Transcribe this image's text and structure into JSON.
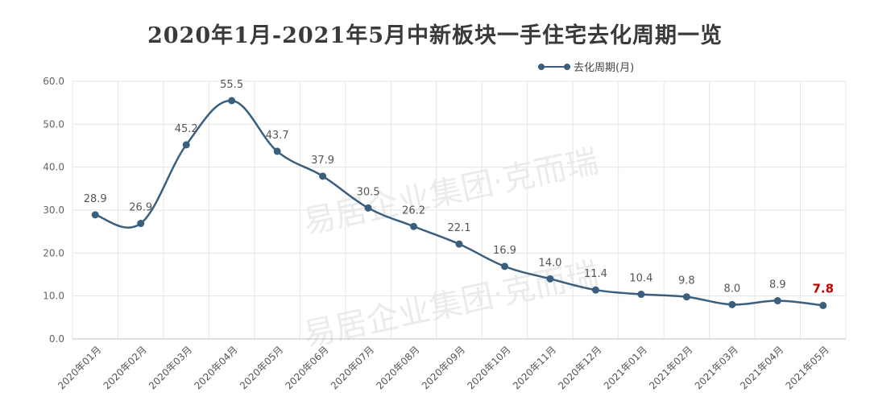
{
  "title": "2020年1月-2021年5月中新板块一手住宅去化周期一览",
  "watermark": "易居企业集团·克而瑞",
  "colors": {
    "line": "#3a5f7e",
    "highlight": "#c00000",
    "grid": "#e6e6e6"
  },
  "chart_data": {
    "type": "line",
    "title": "2020年1月-2021年5月中新板块一手住宅去化周期一览",
    "categories": [
      "2020年01月",
      "2020年02月",
      "2020年03月",
      "2020年04月",
      "2020年05月",
      "2020年06月",
      "2020年07月",
      "2020年08月",
      "2020年09月",
      "2020年10月",
      "2020年11月",
      "2020年12月",
      "2021年01月",
      "2021年02月",
      "2021年03月",
      "2021年04月",
      "2021年05月"
    ],
    "series": [
      {
        "name": "去化周期(月)",
        "values": [
          28.9,
          26.9,
          45.2,
          55.5,
          43.7,
          37.9,
          30.5,
          26.2,
          22.1,
          16.9,
          14.0,
          11.4,
          10.4,
          9.8,
          8.0,
          8.9,
          7.8
        ],
        "labels": [
          "28.9",
          "26.9",
          "45.2",
          "55.5",
          "43.7",
          "37.9",
          "30.5",
          "26.2",
          "22.1",
          "16.9",
          "14.0",
          "11.4",
          "10.4",
          "9.8",
          "8.0",
          "8.9",
          "7.8"
        ]
      }
    ],
    "highlight_last": true,
    "ylim": [
      0,
      60
    ],
    "yticks": [
      "0.0",
      "10.0",
      "20.0",
      "30.0",
      "40.0",
      "50.0",
      "60.0"
    ],
    "grid": true,
    "legend": "top-right",
    "xlabel": "",
    "ylabel": ""
  }
}
